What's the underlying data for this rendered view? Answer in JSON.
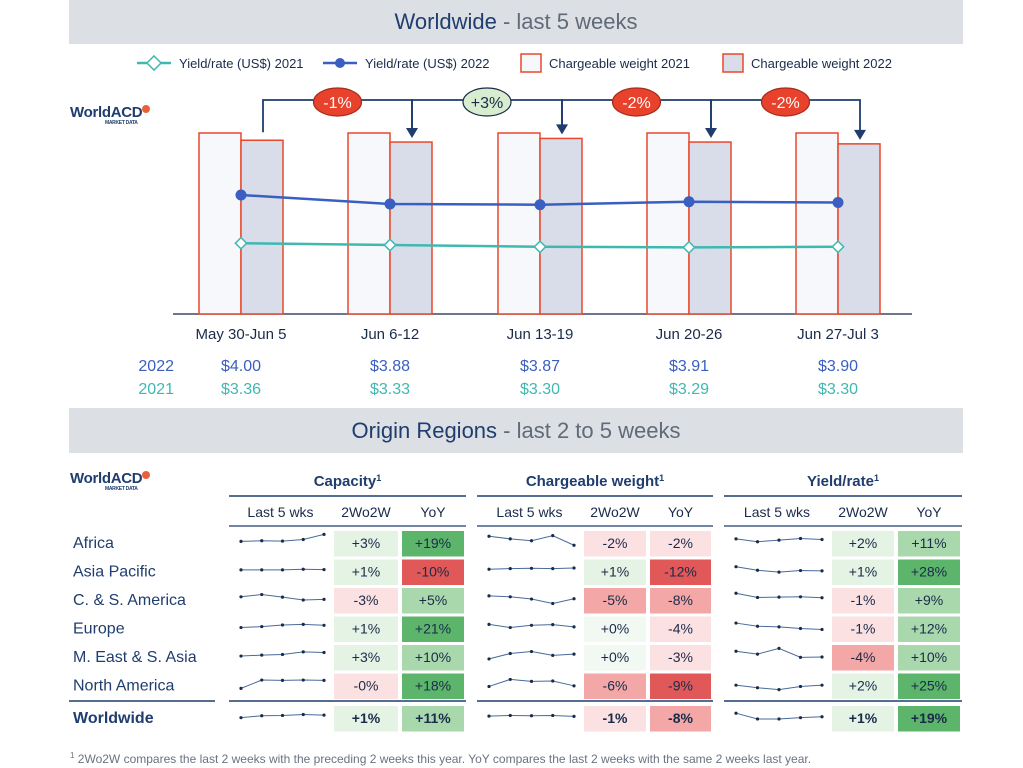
{
  "header": {
    "title": "Worldwide",
    "subtitle": " - last 5 weeks"
  },
  "logo": {
    "name": "WorldACD",
    "tagline": "MARKET DATA"
  },
  "chart_data": [
    {
      "type": "bar+line",
      "legend": [
        {
          "label": "Yield/rate (US$) 2021",
          "color": "#3fb8b0",
          "marker": "diamond"
        },
        {
          "label": "Yield/rate (US$) 2022",
          "color": "#3b5fc0",
          "marker": "circle"
        },
        {
          "label": "Chargeable weight 2021",
          "color": "#e8492c",
          "fill": "#f7f8fb"
        },
        {
          "label": "Chargeable weight 2022",
          "color": "#e8492c",
          "fill": "#d9dde9"
        }
      ],
      "legend_position": "top",
      "categories": [
        "May 30-Jun 5",
        "Jun 6-12",
        "Jun 13-19",
        "Jun 20-26",
        "Jun 27-Jul 3"
      ],
      "weight_2021": [
        100,
        100,
        100,
        100,
        100
      ],
      "weight_2022": [
        96,
        95,
        97,
        95,
        94
      ],
      "weight_changes": [
        "-1%",
        "+3%",
        "-2%",
        "-2%"
      ],
      "yield_2022": [
        4.0,
        3.88,
        3.87,
        3.91,
        3.9
      ],
      "yield_2021": [
        3.36,
        3.33,
        3.3,
        3.29,
        3.3
      ],
      "yield_2022_labels": [
        "$4.00",
        "$3.88",
        "$3.87",
        "$3.91",
        "$3.90"
      ],
      "yield_2021_labels": [
        "$3.36",
        "$3.33",
        "$3.30",
        "$3.29",
        "$3.30"
      ],
      "row_labels": [
        "2022",
        "2021"
      ]
    },
    {
      "type": "table",
      "groups": [
        "Capacity",
        "Chargeable weight",
        "Yield/rate"
      ],
      "group_sup": "1",
      "subheaders": [
        "Last 5 wks",
        "2Wo2W",
        "YoY"
      ],
      "regions": [
        "Africa",
        "Asia Pacific",
        "C. & S. America",
        "Europe",
        "M. East & S. Asia",
        "North America",
        "Worldwide"
      ],
      "capacity": {
        "wow": [
          "+3%",
          "+1%",
          "-3%",
          "+1%",
          "+3%",
          "-0%",
          "+1%"
        ],
        "yoy": [
          "+19%",
          "-10%",
          "+5%",
          "+21%",
          "+10%",
          "+18%",
          "+11%"
        ],
        "spark": [
          [
            3,
            3.2,
            3.1,
            3.6,
            5.2
          ],
          [
            3,
            3,
            3,
            3.2,
            3.1
          ],
          [
            3.5,
            4.2,
            3.4,
            2.5,
            2.7
          ],
          [
            2.8,
            3.1,
            3.6,
            3.8,
            3.5
          ],
          [
            2.8,
            3.1,
            3.3,
            4.1,
            3.9
          ],
          [
            1.6,
            4.2,
            4.1,
            4.2,
            4.1
          ],
          [
            2.6,
            3.2,
            3.3,
            3.6,
            3.4
          ]
        ]
      },
      "weight": {
        "wow": [
          "-2%",
          "+1%",
          "-5%",
          "+0%",
          "+0%",
          "-6%",
          "-1%"
        ],
        "yoy": [
          "-2%",
          "-12%",
          "-8%",
          "-4%",
          "-3%",
          "-9%",
          "-8%"
        ],
        "spark": [
          [
            4.6,
            3.8,
            3.2,
            4.8,
            1.8
          ],
          [
            3.2,
            3.4,
            3.5,
            3.4,
            3.6
          ],
          [
            3.8,
            3.5,
            2.8,
            1.4,
            2.9
          ],
          [
            3.8,
            2.8,
            3.5,
            3.7,
            3.0
          ],
          [
            1.9,
            3.6,
            4.2,
            3.0,
            3.4
          ],
          [
            2.2,
            4.4,
            3.8,
            3.9,
            2.4
          ],
          [
            3.1,
            3.3,
            3.2,
            3.3,
            3.0
          ]
        ]
      },
      "yield": {
        "wow": [
          "+2%",
          "+1%",
          "-1%",
          "-1%",
          "-4%",
          "+2%",
          "+1%"
        ],
        "yoy": [
          "+11%",
          "+28%",
          "+9%",
          "+12%",
          "+10%",
          "+25%",
          "+19%"
        ],
        "spark": [
          [
            3.8,
            2.9,
            3.4,
            3.9,
            3.6
          ],
          [
            4.0,
            2.9,
            2.3,
            2.8,
            2.7
          ],
          [
            4.6,
            3.3,
            3.4,
            3.5,
            3.2
          ],
          [
            4.2,
            3.2,
            3.0,
            2.5,
            2.2
          ],
          [
            4.3,
            3.4,
            5.2,
            2.4,
            2.5
          ],
          [
            2.6,
            1.8,
            1.2,
            2.2,
            2.6
          ],
          [
            4.0,
            2.2,
            2.2,
            2.6,
            2.9
          ]
        ]
      }
    }
  ],
  "section2": {
    "title": "Origin Regions",
    "subtitle": " - last 2 to 5 weeks"
  },
  "footnote": {
    "sup": "1",
    "text": " 2Wo2W compares the last 2 weeks with the preceding 2 weeks this year. YoY compares the last 2 weeks with the same 2 weeks last year."
  },
  "colors": {
    "navy": "#1f3d6e",
    "red_bar": "#e8492c",
    "bar2021": "#f7f8fb",
    "bar2022": "#d9dde9",
    "pos_strong": "#5cb56a",
    "pos_mid": "#a9d8ad",
    "pos_light": "#e4f3e4",
    "neg_strong": "#e05858",
    "neg_mid": "#f3a7a7",
    "neg_light": "#fbe1e1"
  }
}
